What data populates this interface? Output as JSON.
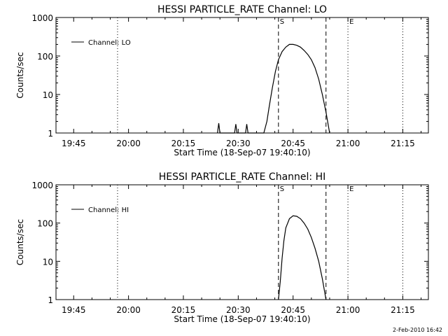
{
  "footer": {
    "date": "2-Feb-2010 16:42"
  },
  "chart_data": [
    {
      "type": "line",
      "title": "HESSI PARTICLE_RATE Channel: LO",
      "xlabel": "Start Time (18-Sep-07 19:40:10)",
      "ylabel": "Counts/sec",
      "y_scale": "log",
      "ylim": [
        1,
        1000
      ],
      "y_ticks": [
        "1",
        "10",
        "100",
        "1000"
      ],
      "x_ticks": [
        "19:45",
        "20:00",
        "20:15",
        "20:30",
        "20:45",
        "21:00",
        "21:15"
      ],
      "xlim": [
        "19:40:10",
        "21:22"
      ],
      "legend": {
        "label": "Channel: LO",
        "placement": "top-left"
      },
      "markers": [
        {
          "label": "S",
          "time": "20:41",
          "style": "dashed"
        },
        {
          "label": "E",
          "time": "21:00",
          "style": "dotted"
        }
      ],
      "dashed_lines": [
        "20:41",
        "20:54"
      ],
      "dotted_lines": [
        "19:57",
        "21:00",
        "21:15"
      ],
      "series": [
        {
          "name": "Channel: LO",
          "points": [
            [
              "20:24:20",
              1
            ],
            [
              "20:24:40",
              1.8
            ],
            [
              "20:25:00",
              1
            ],
            [
              "20:29:00",
              1
            ],
            [
              "20:29:20",
              1.7
            ],
            [
              "20:29:40",
              1
            ],
            [
              "20:32:00",
              1
            ],
            [
              "20:32:20",
              1.7
            ],
            [
              "20:32:40",
              1
            ],
            [
              "20:37:00",
              1
            ],
            [
              "20:37:50",
              2
            ],
            [
              "20:38:30",
              5
            ],
            [
              "20:39:20",
              15
            ],
            [
              "20:40:10",
              40
            ],
            [
              "20:41:00",
              80
            ],
            [
              "20:42:00",
              130
            ],
            [
              "20:43:00",
              170
            ],
            [
              "20:44:00",
              200
            ],
            [
              "20:45:00",
              200
            ],
            [
              "20:46:00",
              190
            ],
            [
              "20:47:00",
              170
            ],
            [
              "20:48:00",
              140
            ],
            [
              "20:49:00",
              110
            ],
            [
              "20:50:00",
              80
            ],
            [
              "20:51:00",
              50
            ],
            [
              "20:52:00",
              25
            ],
            [
              "20:53:00",
              10
            ],
            [
              "20:54:00",
              3.5
            ],
            [
              "20:55:00",
              1
            ]
          ]
        }
      ]
    },
    {
      "type": "line",
      "title": "HESSI PARTICLE_RATE Channel: HI",
      "xlabel": "Start Time (18-Sep-07 19:40:10)",
      "ylabel": "Counts/sec",
      "y_scale": "log",
      "ylim": [
        1,
        1000
      ],
      "y_ticks": [
        "1",
        "10",
        "100",
        "1000"
      ],
      "x_ticks": [
        "19:45",
        "20:00",
        "20:15",
        "20:30",
        "20:45",
        "21:00",
        "21:15"
      ],
      "xlim": [
        "19:40:10",
        "21:22"
      ],
      "legend": {
        "label": "Channel: HI",
        "placement": "top-left"
      },
      "markers": [
        {
          "label": "S",
          "time": "20:41",
          "style": "dashed"
        },
        {
          "label": "E",
          "time": "21:00",
          "style": "dotted"
        }
      ],
      "dashed_lines": [
        "20:41",
        "20:54"
      ],
      "dotted_lines": [
        "19:57",
        "21:00",
        "21:15"
      ],
      "series": [
        {
          "name": "Channel: HI",
          "points": [
            [
              "20:41:00",
              1
            ],
            [
              "20:41:30",
              3
            ],
            [
              "20:42:00",
              12
            ],
            [
              "20:42:30",
              35
            ],
            [
              "20:43:00",
              75
            ],
            [
              "20:44:00",
              130
            ],
            [
              "20:45:00",
              155
            ],
            [
              "20:46:00",
              150
            ],
            [
              "20:47:00",
              130
            ],
            [
              "20:48:00",
              100
            ],
            [
              "20:49:00",
              70
            ],
            [
              "20:50:00",
              42
            ],
            [
              "20:51:00",
              22
            ],
            [
              "20:52:00",
              10
            ],
            [
              "20:53:00",
              3.5
            ],
            [
              "20:54:00",
              1
            ]
          ]
        }
      ]
    }
  ]
}
